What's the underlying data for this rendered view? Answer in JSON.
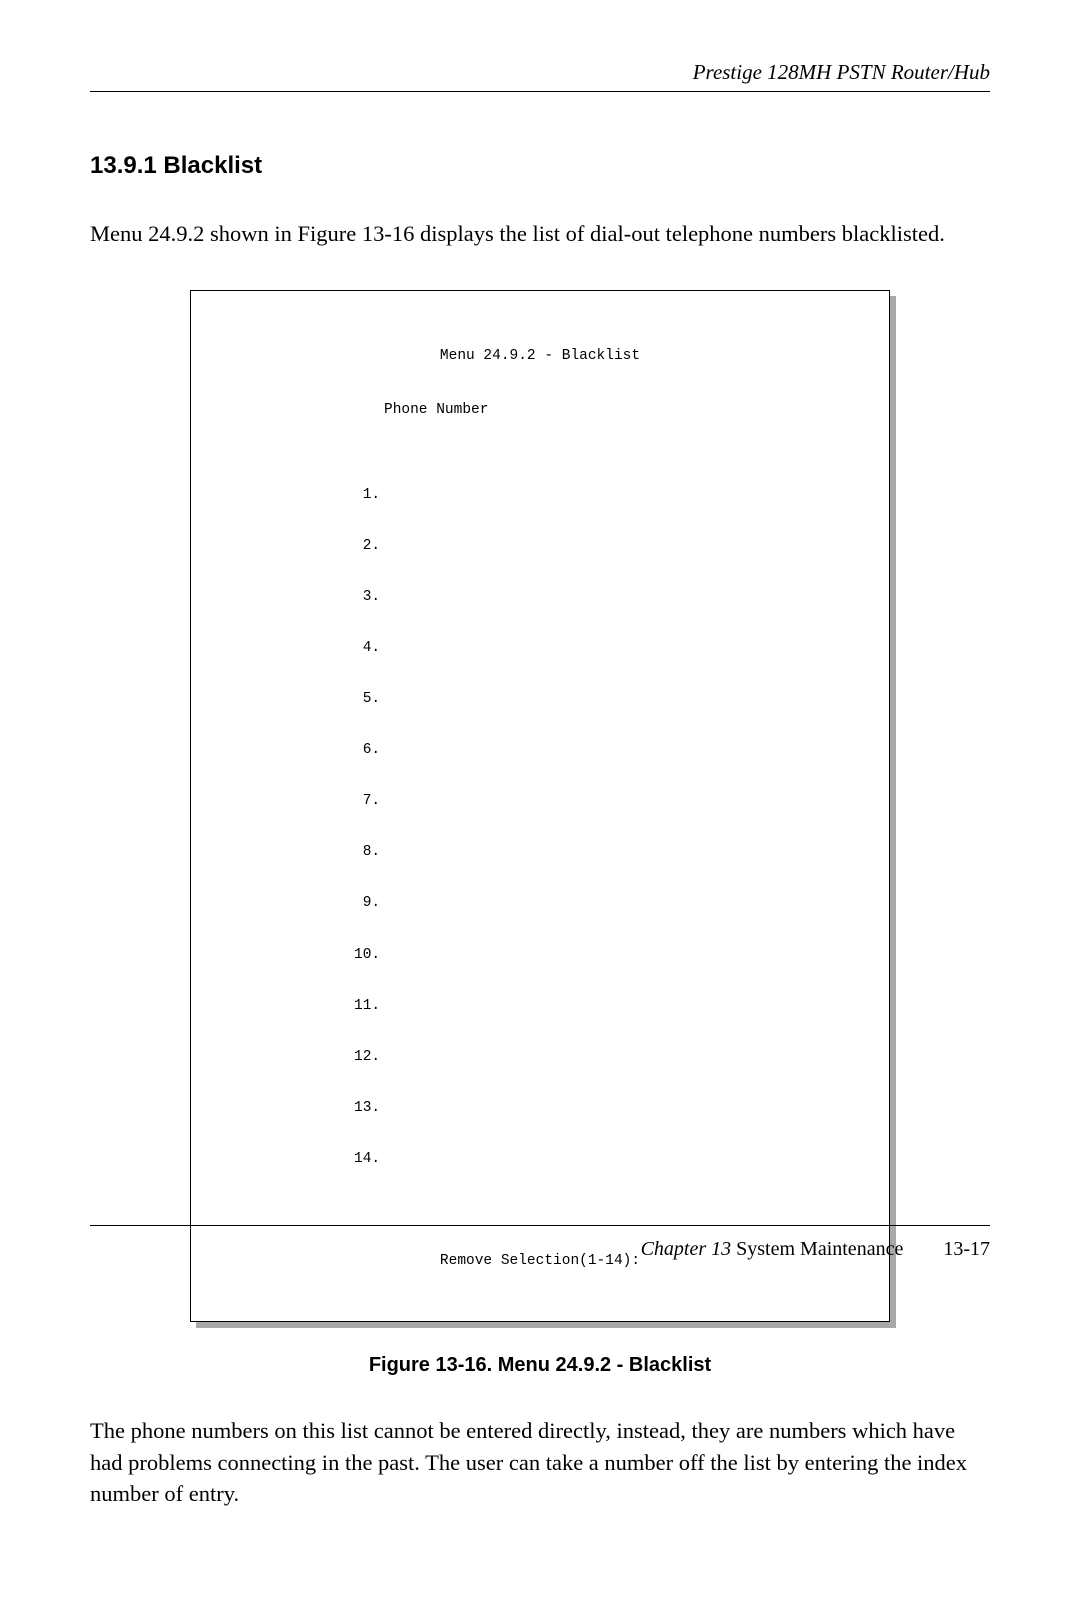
{
  "header": {
    "product": "Prestige 128MH    PSTN Router/Hub"
  },
  "section": {
    "heading": "13.9.1 Blacklist",
    "para1": "Menu 24.9.2 shown in Figure 13-16 displays the list of dial-out telephone numbers blacklisted.",
    "para2": "The phone numbers on this list cannot be entered directly, instead, they are numbers which have had problems connecting in the past. The user can take a number off the list by entering the index number of entry."
  },
  "figure": {
    "menu_title": "Menu 24.9.2 - Blacklist",
    "column_header": "Phone Number",
    "rows": [
      " 1.",
      " 2.",
      " 3.",
      " 4.",
      " 5.",
      " 6.",
      " 7.",
      " 8.",
      " 9.",
      "10.",
      "11.",
      "12.",
      "13.",
      "14."
    ],
    "prompt": "Remove Selection(1-14):",
    "caption": "Figure 13-16.    Menu 24.9.2 - Blacklist"
  },
  "footer": {
    "chapter": "Chapter 13 ",
    "title": "System Maintenance",
    "page": "13-17"
  },
  "styling": {
    "page_bg": "#ffffff",
    "text_color": "#000000",
    "rule_color": "#000000",
    "figure_border_color": "#000000",
    "figure_shadow_color": "#a9a9a9",
    "body_font_family": "Times New Roman",
    "mono_font_family": "Courier New",
    "heading_font_family": "Arial",
    "body_font_size_pt": 17,
    "heading_font_size_pt": 18,
    "mono_font_size_pt": 11,
    "caption_font_size_pt": 15
  }
}
